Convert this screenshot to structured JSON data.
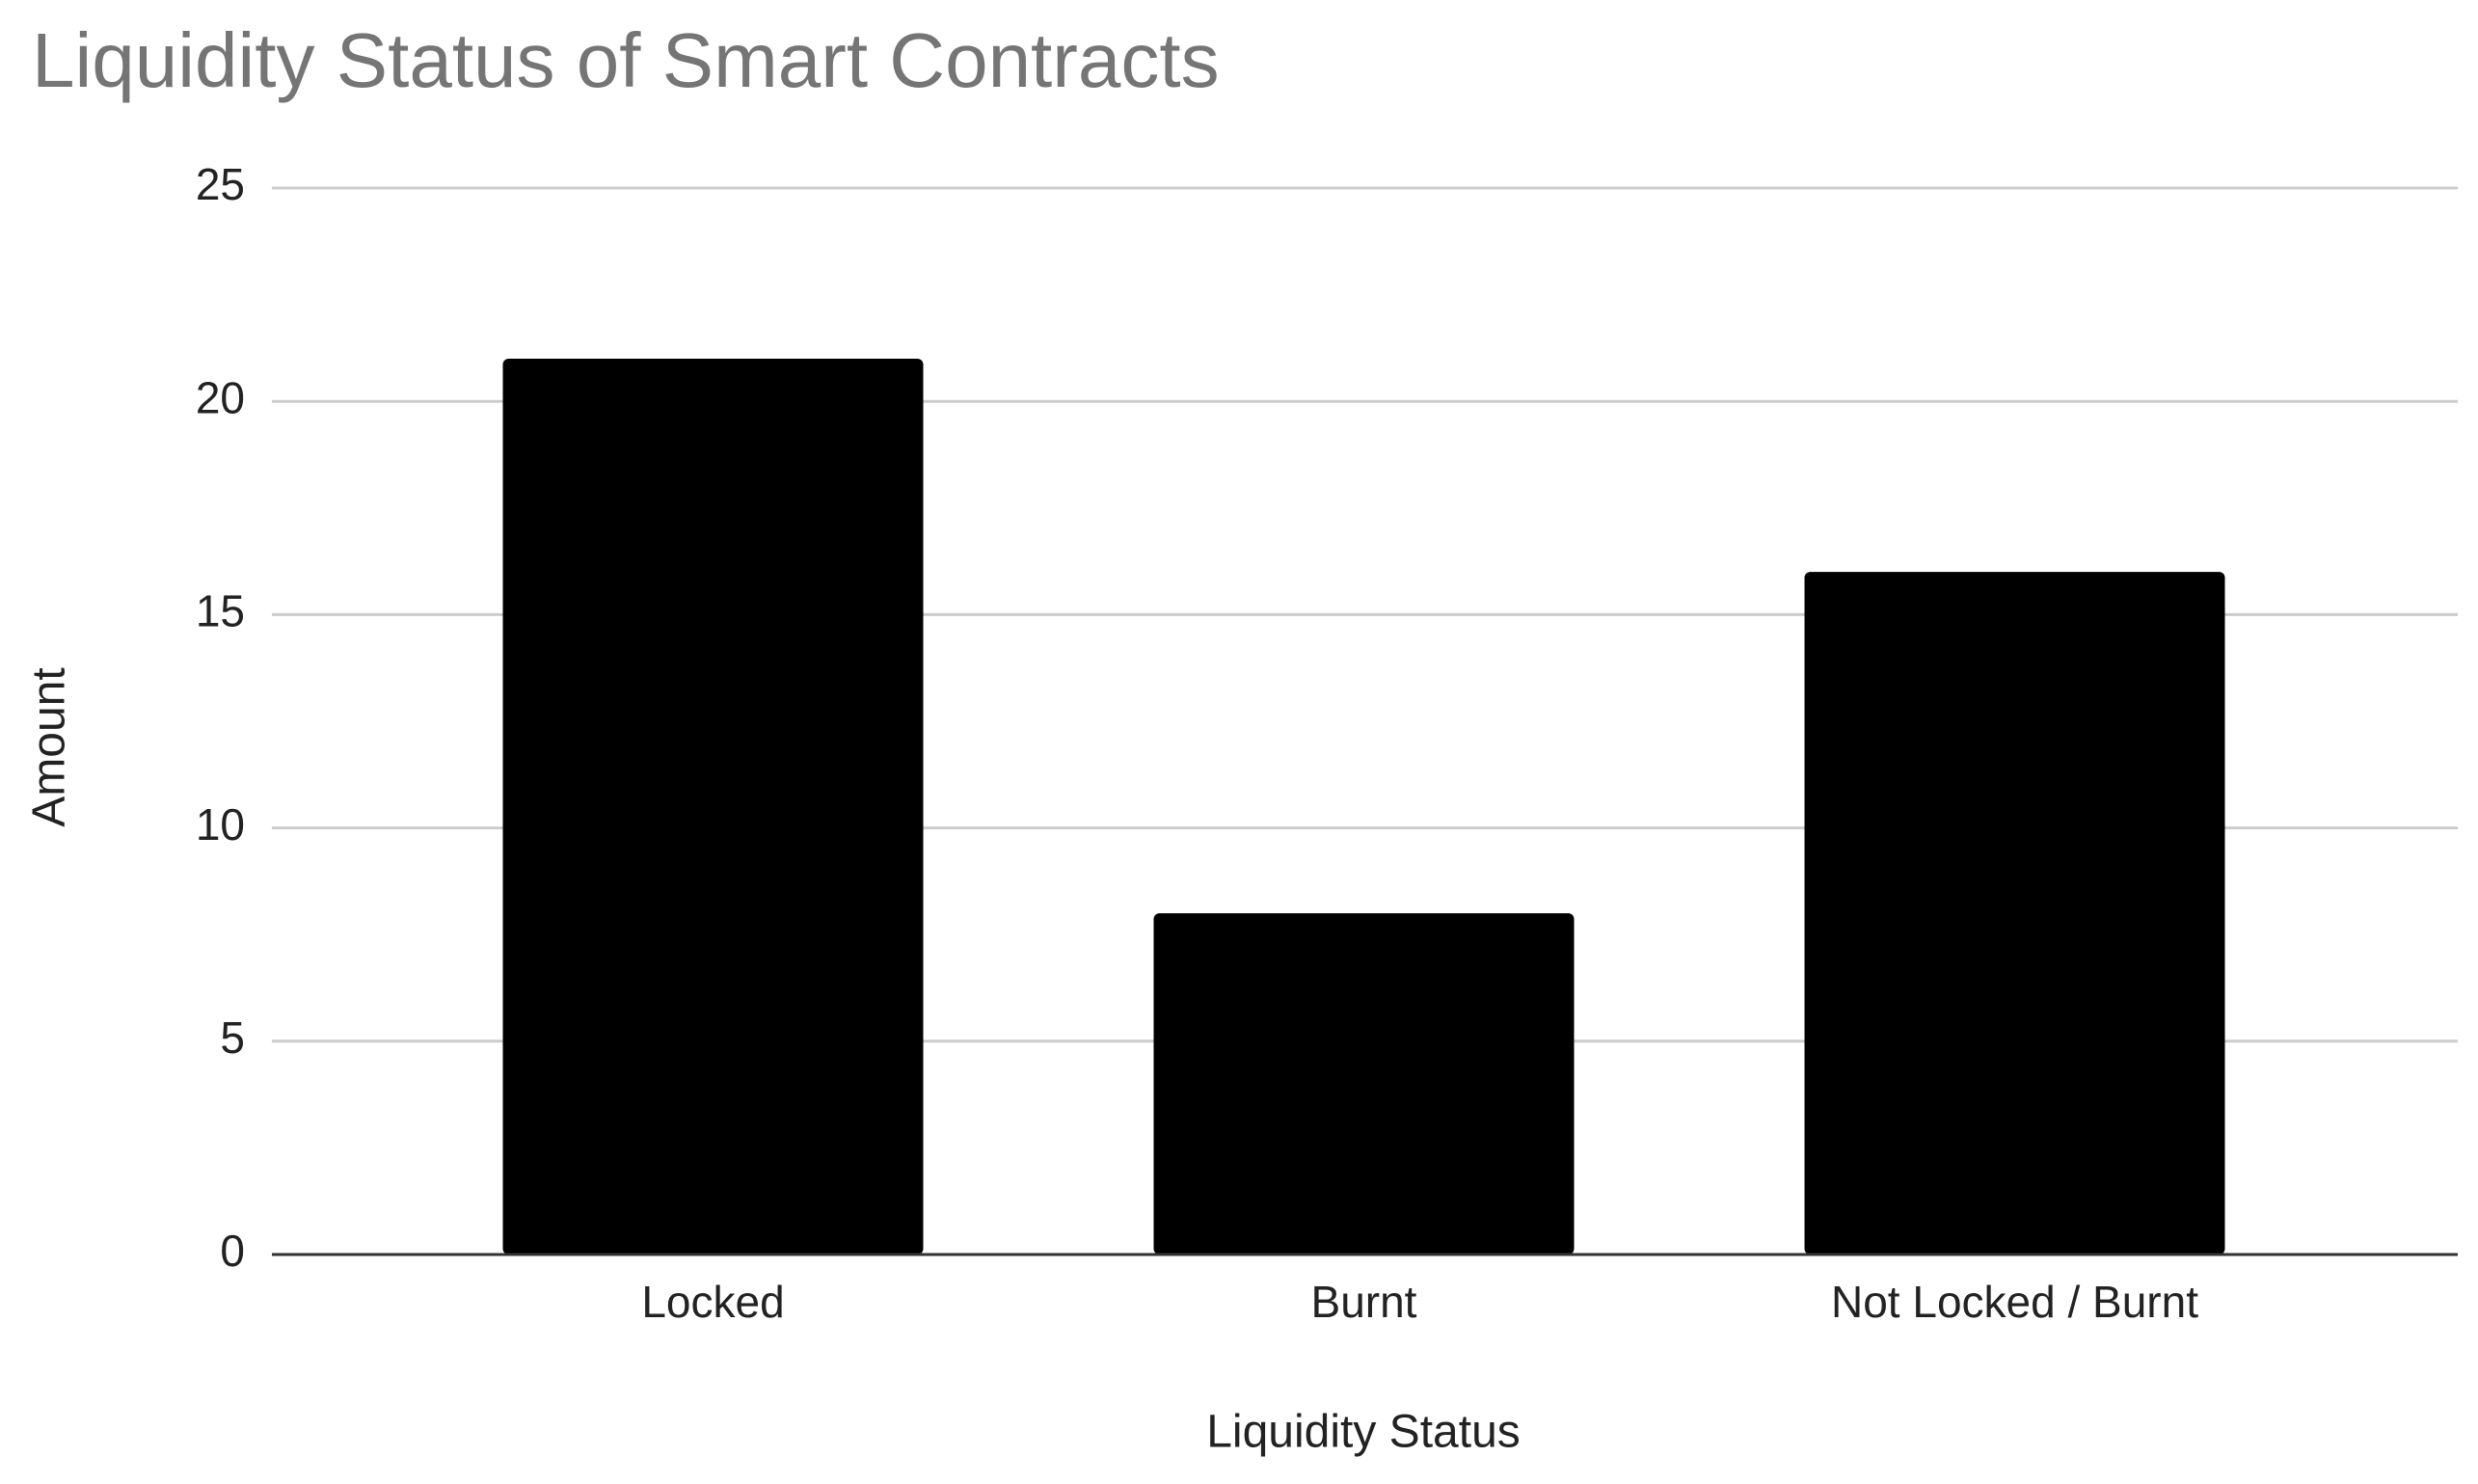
{
  "chart_data": {
    "type": "bar",
    "title": "Liquidity Status of Smart Contracts",
    "x_label": "Liquidity Status",
    "y_label": "Amount",
    "categories": [
      "Locked",
      "Burnt",
      "Not Locked / Burnt"
    ],
    "values": [
      21,
      8,
      16
    ],
    "color": "#000000",
    "ylim": [
      0,
      25
    ],
    "yticks": [
      0,
      5,
      10,
      15,
      20,
      25
    ],
    "grid": true
  }
}
